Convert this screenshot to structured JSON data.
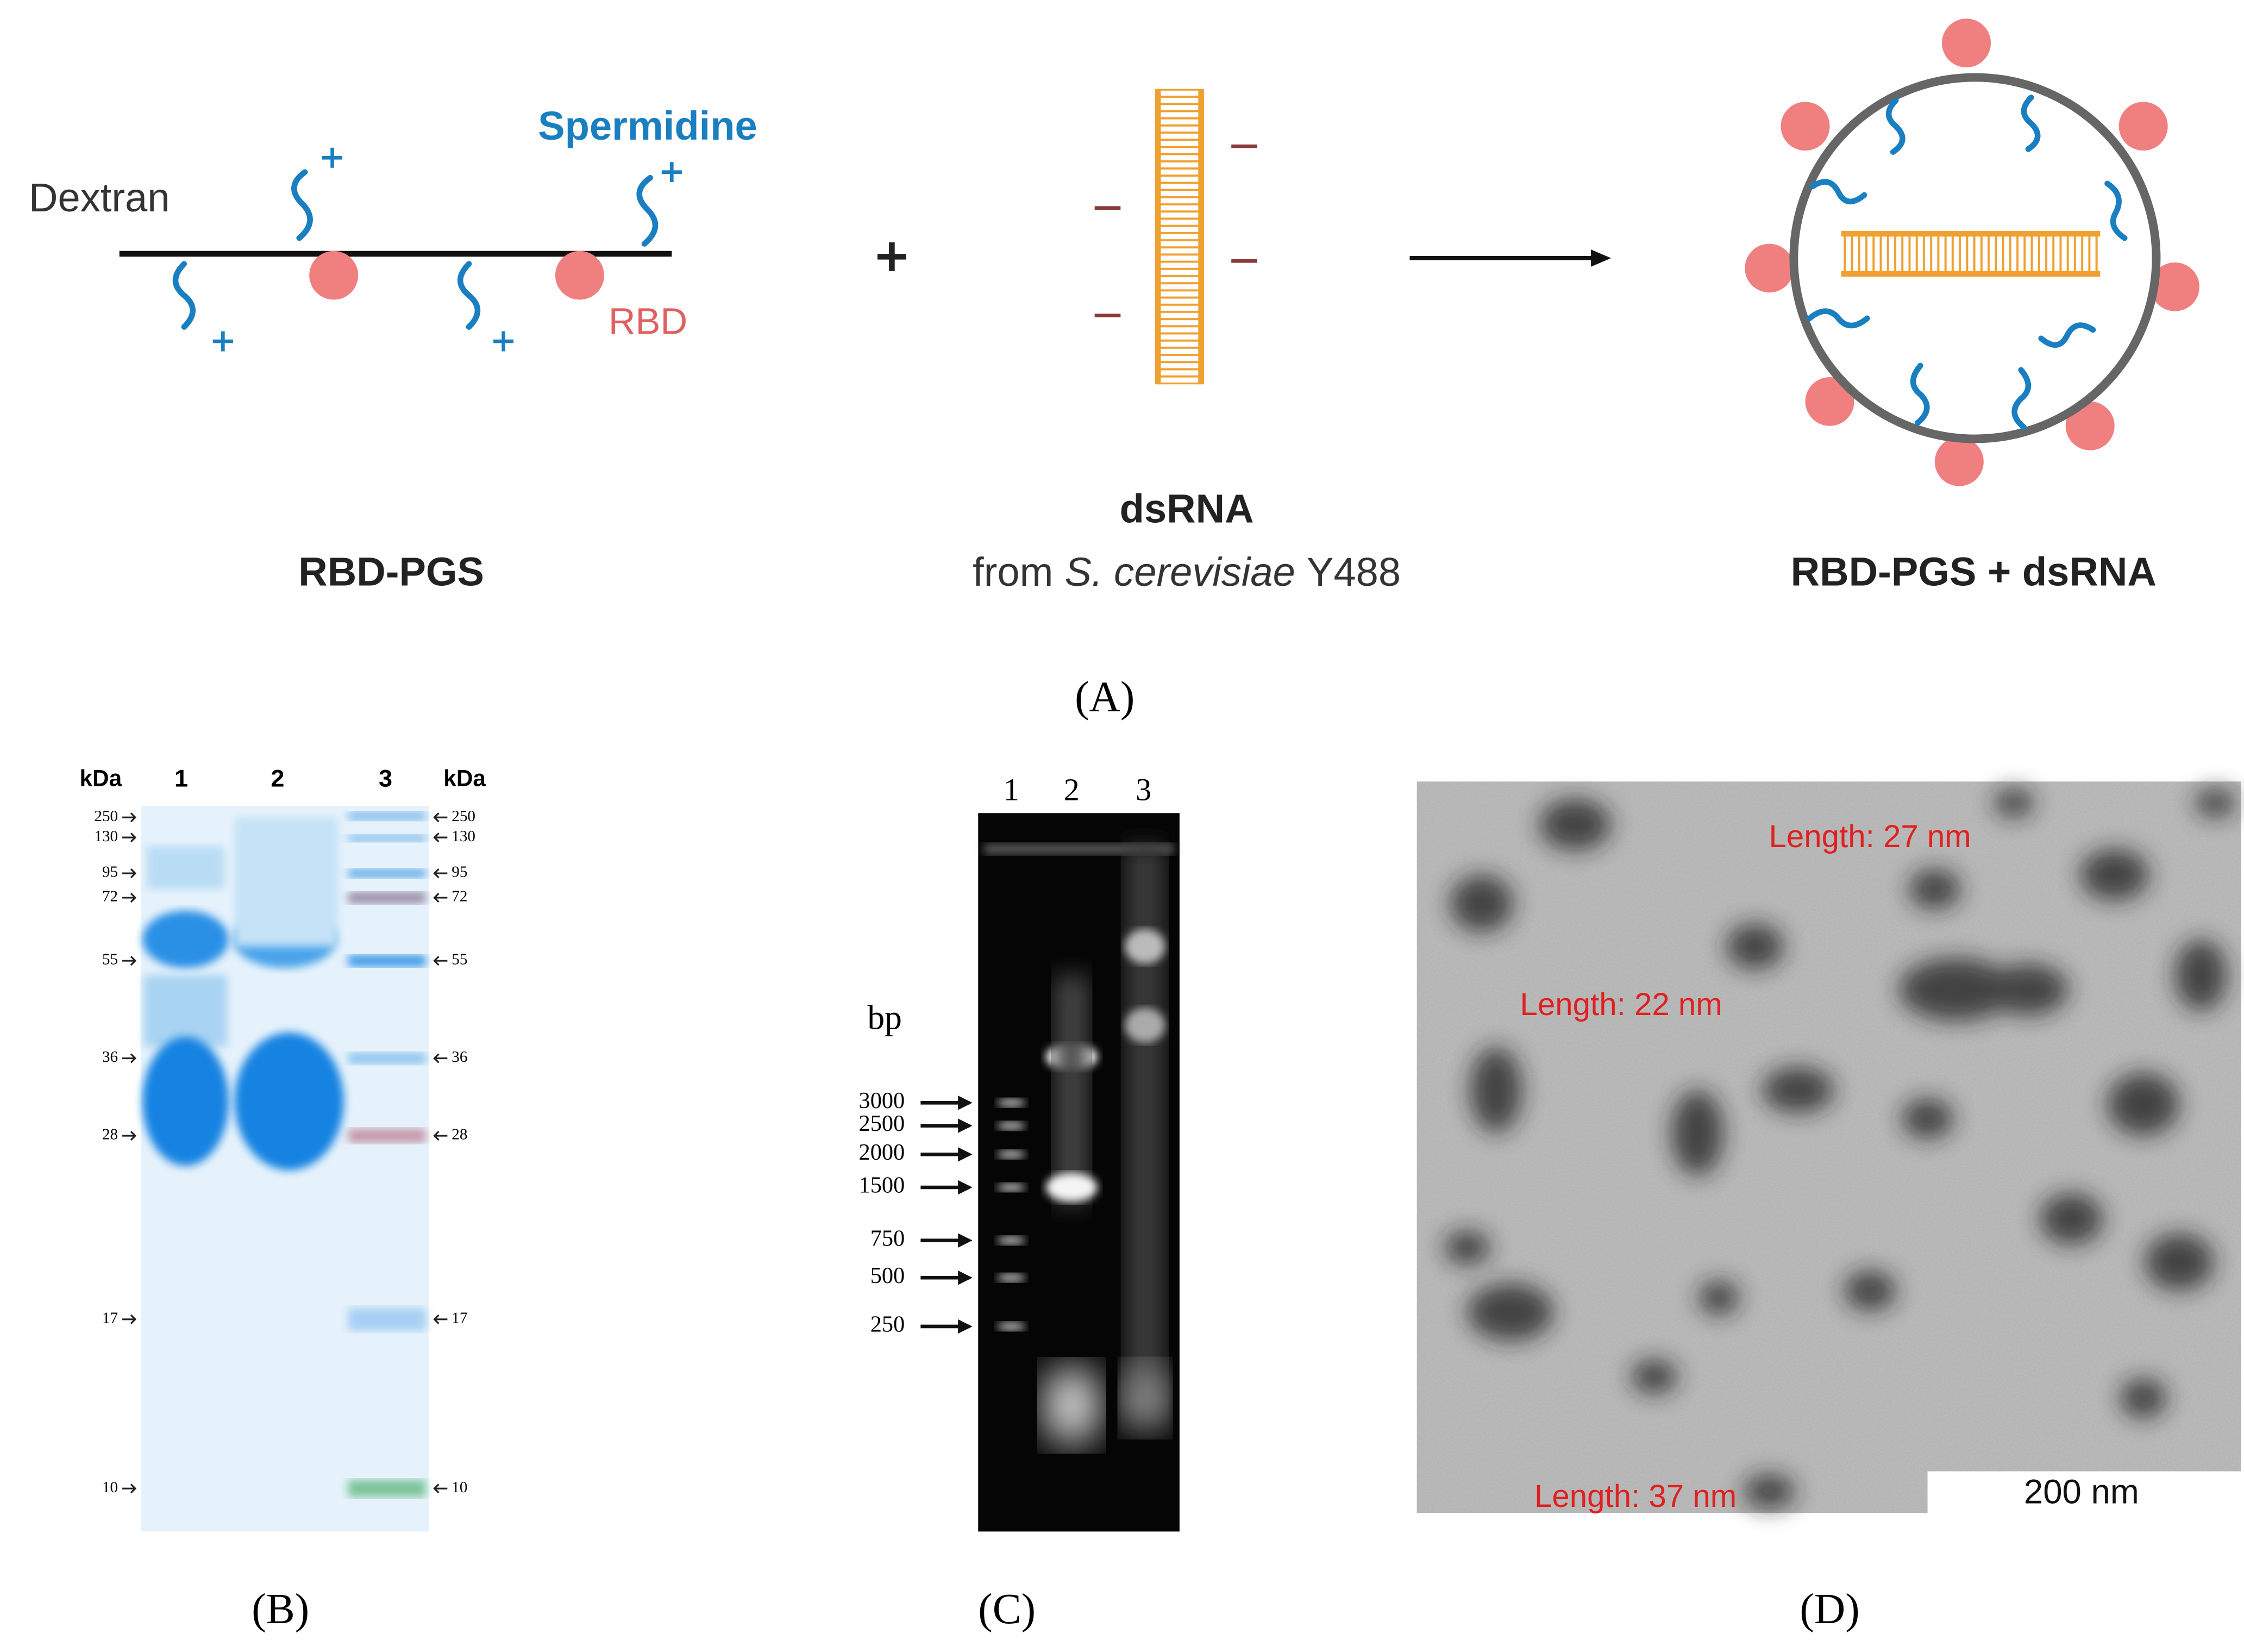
{
  "panel_a": {
    "dextran": "Dextran",
    "spermidine": "Spermidine",
    "rbd": "RBD",
    "rbd_pgs": "RBD-PGS",
    "dsrna": "dsRNA",
    "source": {
      "prefix": "from",
      "species": "S. cerevisiae",
      "strain": "Y488"
    },
    "complex": "RBD-PGS + dsRNA",
    "label": "(A)"
  },
  "panel_b": {
    "unit": "kDa",
    "lanes": [
      "1",
      "2",
      "3"
    ],
    "markers": [
      250,
      130,
      95,
      72,
      55,
      36,
      28,
      17,
      10
    ],
    "label": "(B)"
  },
  "panel_c": {
    "unit": "bp",
    "lanes": [
      "1",
      "2",
      "3"
    ],
    "markers": [
      3000,
      2500,
      2000,
      1500,
      750,
      500,
      250
    ],
    "label": "(C)"
  },
  "panel_d": {
    "measurements": [
      "Length: 27 nm",
      "Length: 22 nm",
      "Length: 37 nm"
    ],
    "scale_bar": "200 nm",
    "label": "(D)"
  }
}
